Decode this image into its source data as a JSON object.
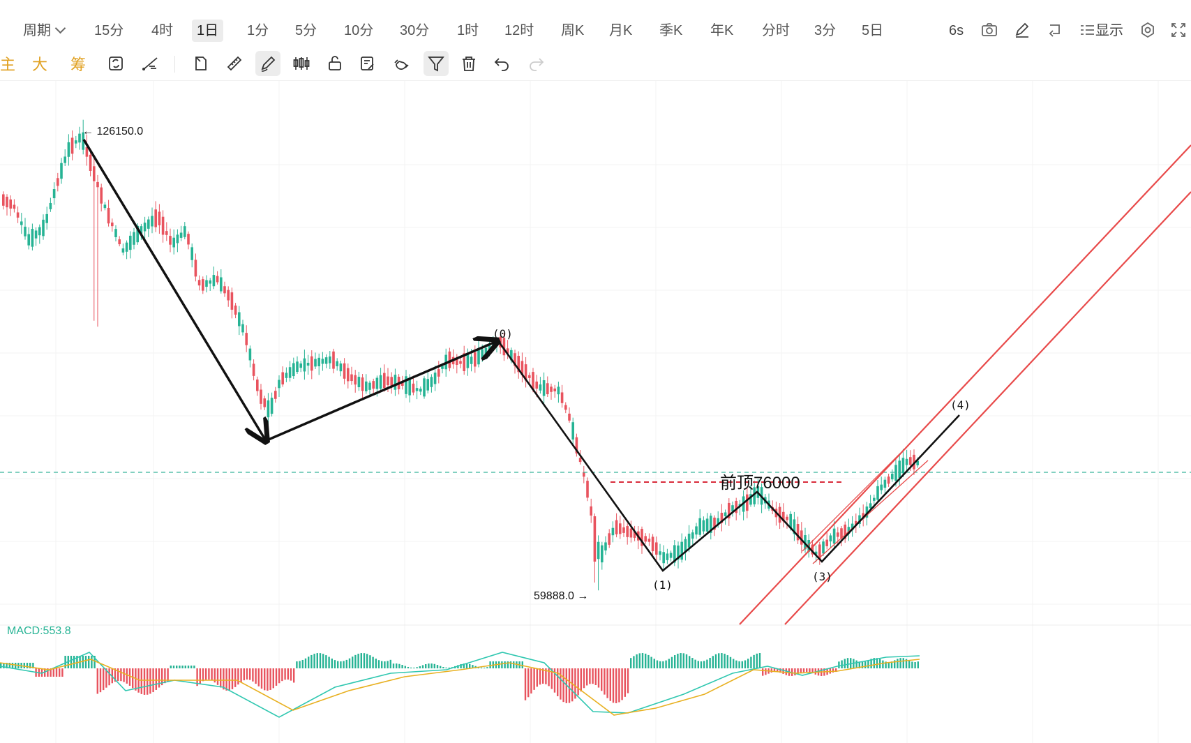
{
  "toolbar": {
    "periods": [
      {
        "label": "周期",
        "dropdown": true
      },
      {
        "label": "15分"
      },
      {
        "label": "4时"
      },
      {
        "label": "1日",
        "active": true
      },
      {
        "label": "1分"
      },
      {
        "label": "5分"
      },
      {
        "label": "10分"
      },
      {
        "label": "30分"
      },
      {
        "label": "1时"
      },
      {
        "label": "12时"
      },
      {
        "label": "周K"
      },
      {
        "label": "月K"
      },
      {
        "label": "季K"
      },
      {
        "label": "年K"
      },
      {
        "label": "分时"
      },
      {
        "label": "3分"
      },
      {
        "label": "5日"
      }
    ],
    "refresh_label": "6s",
    "display_label": "显示",
    "right_icons": [
      "camera-icon",
      "pen-icon",
      "replay-icon",
      "list-icon",
      "settings-icon",
      "fullscreen-icon"
    ]
  },
  "drawing_tools": {
    "chips": [
      "主",
      "大",
      "筹"
    ],
    "tools": [
      {
        "name": "sync-icon"
      },
      {
        "name": "line-tool-icon"
      },
      {
        "name": "bookmark-icon"
      },
      {
        "name": "ruler-icon"
      },
      {
        "name": "brush-icon",
        "active": true
      },
      {
        "name": "candles-icon"
      },
      {
        "name": "lock-icon"
      },
      {
        "name": "edit-note-icon"
      },
      {
        "name": "magnet-icon"
      },
      {
        "name": "filter-icon",
        "active": true
      },
      {
        "name": "delete-icon"
      },
      {
        "name": "undo-icon"
      },
      {
        "name": "redo-icon",
        "disabled": true
      }
    ]
  },
  "chart": {
    "high_label": "126150.0",
    "low_label": "59888.0",
    "resistance_label": "前顶76000",
    "wave_labels": [
      "(0)",
      "(1)",
      "(3)",
      "(4)"
    ],
    "macd_label": "MACD:553.8",
    "colors": {
      "up": "#26b394",
      "down": "#e8535e",
      "arrow": "#111111",
      "channel": "#e84a4a",
      "dash": "#d92b3a",
      "price_line": "#38b59a",
      "dif": "#2fc7b0",
      "dea": "#e8b020"
    }
  },
  "chart_data": {
    "type": "candlestick",
    "series": [
      {
        "name": "MACD",
        "value": 553.8
      }
    ],
    "annotations": [
      {
        "text": "126150.0",
        "value": 126150.0
      },
      {
        "text": "59888.0",
        "value": 59888.0
      },
      {
        "text": "前顶76000",
        "value": 76000
      }
    ]
  }
}
